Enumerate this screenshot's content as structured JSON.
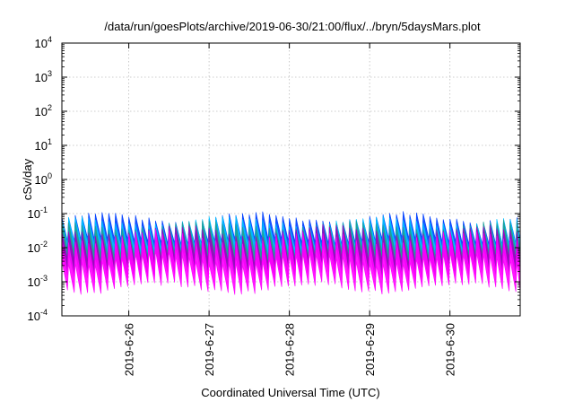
{
  "chart_data": {
    "type": "area",
    "title": "/data/run/goesPlots/archive/2019-06-30/21:00/flux/../bryn/5daysMars.plot",
    "xlabel": "Coordinated Universal Time (UTC)",
    "ylabel": "cSv/day",
    "yscale": "log",
    "ylim": [
      0.0001,
      10000
    ],
    "yticks": [
      {
        "value": 0.0001,
        "base": "10",
        "exp": "-4"
      },
      {
        "value": 0.001,
        "base": "10",
        "exp": "-3"
      },
      {
        "value": 0.01,
        "base": "10",
        "exp": "-2"
      },
      {
        "value": 0.1,
        "base": "10",
        "exp": "-1"
      },
      {
        "value": 1,
        "base": "10",
        "exp": "0"
      },
      {
        "value": 10,
        "base": "10",
        "exp": "1"
      },
      {
        "value": 100,
        "base": "10",
        "exp": "2"
      },
      {
        "value": 1000,
        "base": "10",
        "exp": "3"
      },
      {
        "value": 10000,
        "base": "10",
        "exp": "4"
      }
    ],
    "xlim": [
      "2019-06-25T04:00",
      "2019-06-30T21:00"
    ],
    "xticks": [
      {
        "value": "2019-06-26T00:00",
        "label": "2019-6-26"
      },
      {
        "value": "2019-06-27T00:00",
        "label": "2019-6-27"
      },
      {
        "value": "2019-06-28T00:00",
        "label": "2019-6-28"
      },
      {
        "value": "2019-06-29T00:00",
        "label": "2019-6-29"
      },
      {
        "value": "2019-06-30T00:00",
        "label": "2019-6-30"
      }
    ],
    "grid": true,
    "legend": "none",
    "oscillation_period_hours": 2,
    "series_bands": [
      {
        "color": "#ff00ff",
        "peak_min": 0.012,
        "peak_max": 0.035,
        "trough_min": 0.0012,
        "trough_max": 0.003
      },
      {
        "color": "#a000c0",
        "peak_min": 0.02,
        "peak_max": 0.05,
        "trough_min": 0.003,
        "trough_max": 0.006
      },
      {
        "color": "#20a090",
        "peak_min": 0.03,
        "peak_max": 0.07,
        "trough_min": 0.005,
        "trough_max": 0.009
      },
      {
        "color": "#00c0ff",
        "peak_min": 0.04,
        "peak_max": 0.09,
        "trough_min": 0.008,
        "trough_max": 0.014
      },
      {
        "color": "#0040ff",
        "peak_min": 0.05,
        "peak_max": 0.12,
        "trough_min": 0.012,
        "trough_max": 0.02
      }
    ]
  }
}
